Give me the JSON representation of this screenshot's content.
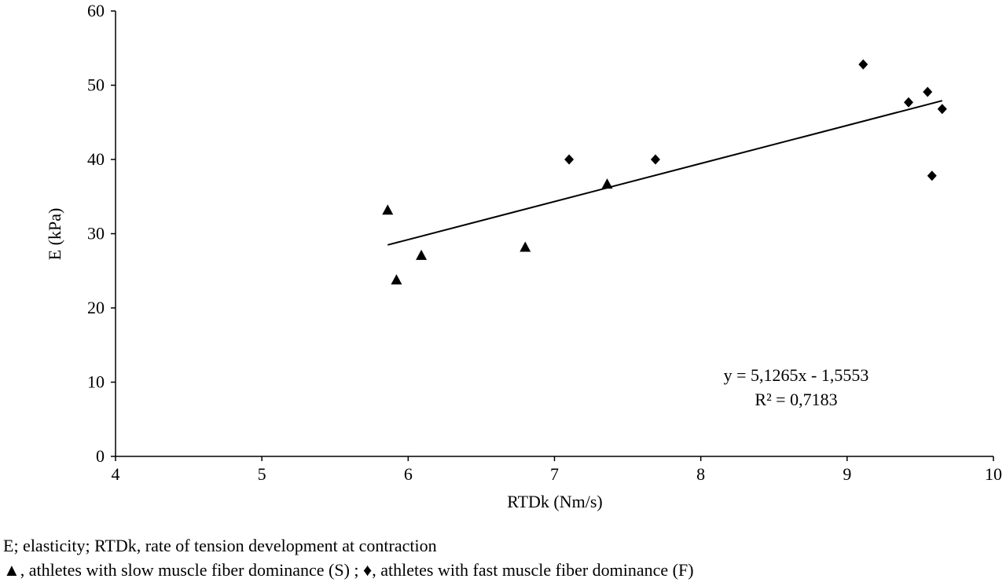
{
  "chart_data": {
    "type": "scatter",
    "xlabel": "RTDk (Nm/s)",
    "ylabel": "E (kPa)",
    "xlim": [
      4,
      10
    ],
    "ylim": [
      0,
      60
    ],
    "x_ticks": [
      4,
      5,
      6,
      7,
      8,
      9,
      10
    ],
    "y_ticks": [
      0,
      10,
      20,
      30,
      40,
      50,
      60
    ],
    "grid": false,
    "series": [
      {
        "name": "athletes with slow muscle fiber dominance (S)",
        "marker": "triangle",
        "color": "#000000",
        "points": [
          {
            "x": 5.86,
            "y": 33.2
          },
          {
            "x": 5.92,
            "y": 23.8
          },
          {
            "x": 6.09,
            "y": 27.1
          },
          {
            "x": 6.8,
            "y": 28.2
          },
          {
            "x": 7.36,
            "y": 36.7
          }
        ]
      },
      {
        "name": "athletes with fast muscle fiber dominance (F)",
        "marker": "diamond",
        "color": "#000000",
        "points": [
          {
            "x": 7.1,
            "y": 40.0
          },
          {
            "x": 7.69,
            "y": 40.0
          },
          {
            "x": 9.11,
            "y": 52.8
          },
          {
            "x": 9.42,
            "y": 47.7
          },
          {
            "x": 9.55,
            "y": 49.1
          },
          {
            "x": 9.58,
            "y": 37.8
          },
          {
            "x": 9.65,
            "y": 46.8
          }
        ]
      }
    ],
    "trendline": {
      "type": "linear",
      "slope": 5.1265,
      "intercept": -1.5553,
      "x_range": [
        5.86,
        9.65
      ],
      "equation": "y = 5,1265x - 1,5553",
      "r_squared": "R² = 0,7183"
    }
  },
  "notes": {
    "line1": "E; elasticity; RTDk, rate of tension development at contraction",
    "line2_triangle": "▲",
    "line2_triangle_text": ", athletes with slow muscle fiber dominance (S) ; ",
    "line2_diamond": "♦",
    "line2_diamond_text": ", athletes with fast muscle fiber dominance (F)"
  }
}
